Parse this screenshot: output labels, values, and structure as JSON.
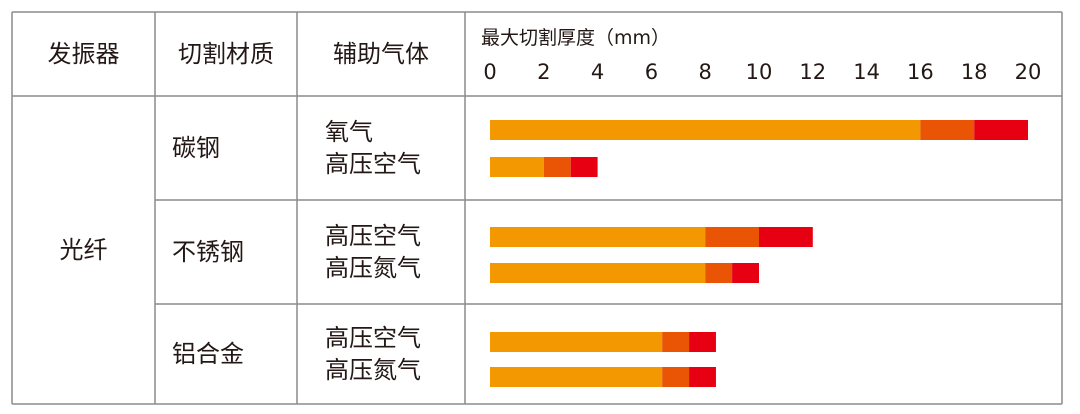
{
  "headers": {
    "resonator": "发振器",
    "material": "切割材质",
    "gas": "辅助气体"
  },
  "resonator_type": "光纤",
  "materials": [
    {
      "name": "碳钢",
      "gases": [
        "氧气",
        "高压空气"
      ]
    },
    {
      "name": "不锈钢",
      "gases": [
        "高压空气",
        "高压氮气"
      ]
    },
    {
      "name": "铝合金",
      "gases": [
        "高压空气",
        "高压氮气"
      ]
    }
  ],
  "chart_data": {
    "type": "bar",
    "orientation": "horizontal",
    "stacked": true,
    "title": "最大切割厚度（mm）",
    "xlim": [
      0,
      20
    ],
    "ticks": [
      0,
      2,
      4,
      6,
      8,
      10,
      12,
      14,
      16,
      18,
      20
    ],
    "categories": [
      "碳钢 · 氧气",
      "碳钢 · 高压空气",
      "不锈钢 · 高压空气",
      "不锈钢 · 高压氮气",
      "铝合金 · 高压空气",
      "铝合金 · 高压氮气"
    ],
    "segment_colors": [
      "#F39800",
      "#E95504",
      "#E60012"
    ],
    "bars": [
      {
        "segments": [
          [
            0,
            16
          ],
          [
            16,
            18
          ],
          [
            18,
            20
          ]
        ]
      },
      {
        "segments": [
          [
            0,
            2
          ],
          [
            2,
            3
          ],
          [
            3,
            4
          ]
        ]
      },
      {
        "segments": [
          [
            0,
            8
          ],
          [
            8,
            10
          ],
          [
            10,
            12
          ]
        ]
      },
      {
        "segments": [
          [
            0,
            8
          ],
          [
            8,
            9
          ],
          [
            9,
            10
          ]
        ]
      },
      {
        "segments": [
          [
            0,
            6.4
          ],
          [
            6.4,
            7.4
          ],
          [
            7.4,
            8.4
          ]
        ]
      },
      {
        "segments": [
          [
            0,
            6.4
          ],
          [
            6.4,
            7.4
          ],
          [
            7.4,
            8.4
          ]
        ]
      }
    ],
    "grid": false,
    "legend": "none"
  }
}
